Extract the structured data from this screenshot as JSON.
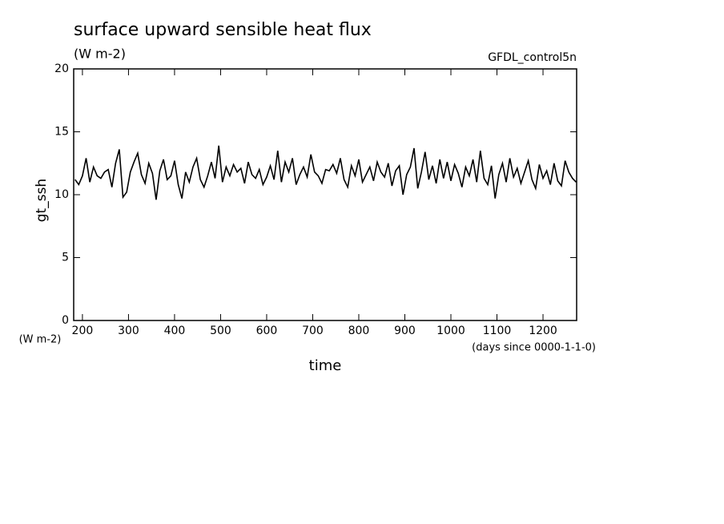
{
  "chart_data": {
    "type": "line",
    "title": "surface upward sensible heat flux",
    "subtitle": "(W m-2)",
    "annotation": "GFDL_control5n",
    "y_label": "gt_ssh",
    "y_units": "(W m-2)",
    "x_units": "(days since 0000-1-1-0)",
    "x_label": "time",
    "xlim": [
      181,
      1273
    ],
    "ylim": [
      0,
      20
    ],
    "xticks": [
      200,
      300,
      400,
      500,
      600,
      700,
      800,
      900,
      1000,
      1100,
      1200
    ],
    "yticks": [
      0,
      5,
      10,
      15,
      20
    ],
    "series": [
      {
        "color": "#000000",
        "x": [
          184,
          192,
          200,
          208,
          216,
          224,
          232,
          240,
          248,
          256,
          264,
          272,
          280,
          288,
          296,
          304,
          312,
          320,
          328,
          336,
          344,
          352,
          360,
          368,
          376,
          384,
          392,
          400,
          408,
          416,
          424,
          432,
          440,
          448,
          456,
          464,
          472,
          480,
          488,
          496,
          504,
          512,
          520,
          528,
          536,
          544,
          552,
          560,
          568,
          576,
          584,
          592,
          600,
          608,
          616,
          624,
          632,
          640,
          648,
          656,
          664,
          672,
          680,
          688,
          696,
          704,
          712,
          720,
          728,
          736,
          744,
          752,
          760,
          768,
          776,
          784,
          792,
          800,
          808,
          816,
          824,
          832,
          840,
          848,
          856,
          864,
          872,
          880,
          888,
          896,
          904,
          912,
          920,
          928,
          936,
          944,
          952,
          960,
          968,
          976,
          984,
          992,
          1000,
          1008,
          1016,
          1024,
          1032,
          1040,
          1048,
          1056,
          1064,
          1072,
          1080,
          1088,
          1096,
          1104,
          1112,
          1120,
          1128,
          1136,
          1144,
          1152,
          1160,
          1168,
          1176,
          1184,
          1192,
          1200,
          1208,
          1216,
          1224,
          1232,
          1240,
          1248,
          1256,
          1264,
          1272
        ],
        "values": [
          11.2,
          10.8,
          11.5,
          12.9,
          11.0,
          12.2,
          11.5,
          11.3,
          11.8,
          12.0,
          10.6,
          12.5,
          13.6,
          9.8,
          10.2,
          11.8,
          12.6,
          13.3,
          11.6,
          10.9,
          12.5,
          11.7,
          9.6,
          11.9,
          12.8,
          11.2,
          11.5,
          12.7,
          10.8,
          9.7,
          11.8,
          11.0,
          12.2,
          12.9,
          11.2,
          10.6,
          11.5,
          12.6,
          11.3,
          13.9,
          11.0,
          12.2,
          11.5,
          12.4,
          11.8,
          12.1,
          10.9,
          12.6,
          11.6,
          11.3,
          12.0,
          10.8,
          11.4,
          12.3,
          11.2,
          13.5,
          11.0,
          12.6,
          11.8,
          12.9,
          10.8,
          11.6,
          12.2,
          11.4,
          13.2,
          11.8,
          11.5,
          10.9,
          12.0,
          11.9,
          12.4,
          11.7,
          12.9,
          11.2,
          10.6,
          12.3,
          11.5,
          12.8,
          11.0,
          11.6,
          12.2,
          11.1,
          12.6,
          11.8,
          11.4,
          12.5,
          10.7,
          11.9,
          12.3,
          10.0,
          11.6,
          12.2,
          13.7,
          10.5,
          11.8,
          13.4,
          11.2,
          12.3,
          10.9,
          12.8,
          11.3,
          12.6,
          11.1,
          12.4,
          11.7,
          10.6,
          12.2,
          11.5,
          12.8,
          11.0,
          13.5,
          11.3,
          10.8,
          12.3,
          9.7,
          11.6,
          12.5,
          11.0,
          12.9,
          11.4,
          12.1,
          10.9,
          11.8,
          12.7,
          11.2,
          10.5,
          12.4,
          11.3,
          11.9,
          10.8,
          12.5,
          11.1,
          10.7,
          12.7,
          11.8,
          11.3,
          11.0
        ]
      }
    ]
  }
}
